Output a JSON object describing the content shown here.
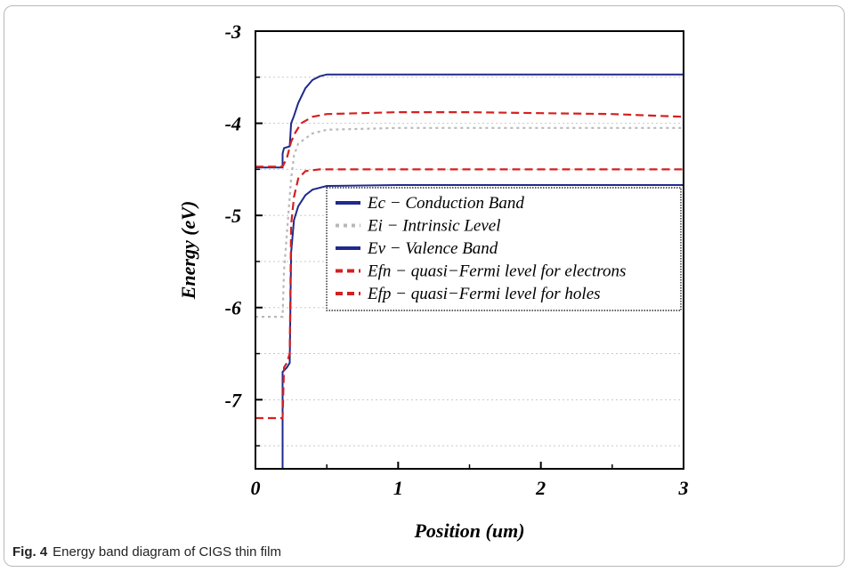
{
  "caption": {
    "label": "Fig. 4",
    "text": "Energy band diagram of CIGS thin film"
  },
  "chart_data": {
    "type": "line",
    "xlabel": "Position (um)",
    "ylabel": "Energy (eV)",
    "xlim": [
      0,
      3
    ],
    "ylim": [
      -7.75,
      -3
    ],
    "xticks": [
      "0",
      "1",
      "2",
      "3"
    ],
    "yticks": [
      "-3",
      "-4",
      "-5",
      "-6",
      "-7"
    ],
    "grid": "horizontal dotted",
    "legend_position": "right-center",
    "series": [
      {
        "name": "Ec − Conduction Band",
        "color": "#1f2a8c",
        "style": "solid",
        "points": [
          [
            0,
            -4.48
          ],
          [
            0.19,
            -4.48
          ],
          [
            0.19,
            -4.33
          ],
          [
            0.2,
            -4.27
          ],
          [
            0.24,
            -4.25
          ],
          [
            0.25,
            -4.0
          ],
          [
            0.27,
            -3.92
          ],
          [
            0.3,
            -3.78
          ],
          [
            0.35,
            -3.62
          ],
          [
            0.4,
            -3.53
          ],
          [
            0.45,
            -3.49
          ],
          [
            0.5,
            -3.47
          ],
          [
            1.0,
            -3.47
          ],
          [
            2.0,
            -3.47
          ],
          [
            3.0,
            -3.47
          ]
        ]
      },
      {
        "name": "Ei − Intrinsic Level",
        "color": "#b8b8b8",
        "style": "dotted",
        "points": [
          [
            0,
            -6.1
          ],
          [
            0.19,
            -6.1
          ],
          [
            0.2,
            -5.6
          ],
          [
            0.22,
            -5.2
          ],
          [
            0.25,
            -4.6
          ],
          [
            0.27,
            -4.35
          ],
          [
            0.3,
            -4.22
          ],
          [
            0.4,
            -4.11
          ],
          [
            0.5,
            -4.07
          ],
          [
            1.0,
            -4.05
          ],
          [
            2.0,
            -4.05
          ],
          [
            3.0,
            -4.05
          ]
        ]
      },
      {
        "name": "Ev − Valence Band",
        "color": "#1f2a8c",
        "style": "solid",
        "points": [
          [
            0.19,
            -7.75
          ],
          [
            0.19,
            -6.7
          ],
          [
            0.22,
            -6.65
          ],
          [
            0.24,
            -6.6
          ],
          [
            0.25,
            -5.4
          ],
          [
            0.27,
            -5.05
          ],
          [
            0.3,
            -4.9
          ],
          [
            0.35,
            -4.78
          ],
          [
            0.4,
            -4.72
          ],
          [
            0.5,
            -4.68
          ],
          [
            1.0,
            -4.67
          ],
          [
            2.0,
            -4.67
          ],
          [
            3.0,
            -4.67
          ]
        ]
      },
      {
        "name": "Efn − quasi−Fermi level for electrons",
        "color": "#d42020",
        "style": "dashed",
        "points": [
          [
            0,
            -4.47
          ],
          [
            0.19,
            -4.47
          ],
          [
            0.22,
            -4.38
          ],
          [
            0.25,
            -4.2
          ],
          [
            0.28,
            -4.1
          ],
          [
            0.32,
            -4.0
          ],
          [
            0.4,
            -3.93
          ],
          [
            0.5,
            -3.9
          ],
          [
            1.0,
            -3.88
          ],
          [
            1.5,
            -3.88
          ],
          [
            2.0,
            -3.89
          ],
          [
            2.5,
            -3.9
          ],
          [
            3.0,
            -3.93
          ]
        ]
      },
      {
        "name": "Efp − quasi−Fermi level for holes",
        "color": "#d42020",
        "style": "dashed",
        "points": [
          [
            0,
            -7.2
          ],
          [
            0.19,
            -7.2
          ],
          [
            0.2,
            -6.65
          ],
          [
            0.22,
            -6.6
          ],
          [
            0.24,
            -6.5
          ],
          [
            0.25,
            -5.1
          ],
          [
            0.27,
            -4.8
          ],
          [
            0.3,
            -4.6
          ],
          [
            0.35,
            -4.52
          ],
          [
            0.45,
            -4.5
          ],
          [
            1.0,
            -4.5
          ],
          [
            2.0,
            -4.5
          ],
          [
            3.0,
            -4.5
          ]
        ]
      }
    ]
  }
}
